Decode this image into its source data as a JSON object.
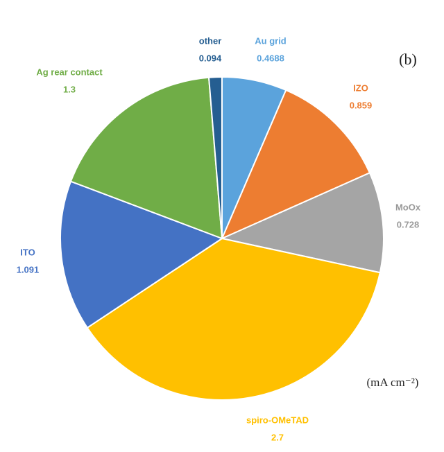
{
  "chart_data": {
    "type": "pie",
    "annotation": "(b)",
    "unit": "(mA cm⁻²)",
    "categories": [
      "Au grid",
      "IZO",
      "MoOx",
      "spiro-OMeTAD",
      "ITO",
      "Ag rear contact",
      "other"
    ],
    "values": [
      0.4688,
      0.859,
      0.728,
      2.7,
      1.091,
      1.3,
      0.094
    ],
    "colors": [
      "#5ba3dc",
      "#ed7d31",
      "#a5a5a5",
      "#ffc000",
      "#4472c4",
      "#70ad47",
      "#255e91"
    ],
    "start_angle": 90,
    "direction": "clockwise"
  }
}
